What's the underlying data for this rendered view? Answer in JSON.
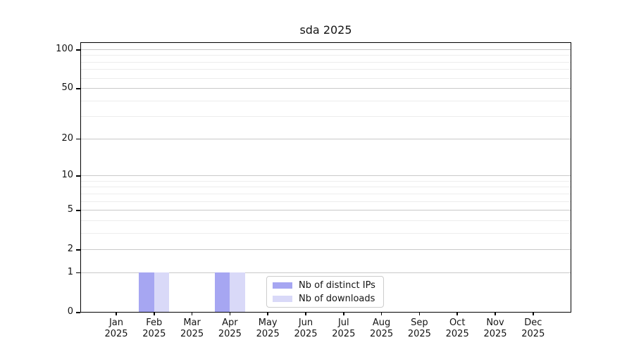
{
  "chart_data": {
    "type": "bar",
    "title": "sda 2025",
    "categories": [
      "Jan",
      "Feb",
      "Mar",
      "Apr",
      "May",
      "Jun",
      "Jul",
      "Aug",
      "Sep",
      "Oct",
      "Nov",
      "Dec"
    ],
    "category_year": "2025",
    "series": [
      {
        "name": "Nb of distinct IPs",
        "color": "#a6a6f2",
        "values": [
          0,
          1,
          0,
          1,
          0,
          0,
          0,
          0,
          0,
          0,
          0,
          0
        ]
      },
      {
        "name": "Nb of downloads",
        "color": "#d9d9f8",
        "values": [
          0,
          1,
          0,
          1,
          0,
          0,
          0,
          0,
          0,
          0,
          0,
          0
        ]
      }
    ],
    "y_axis": {
      "scale": "log1p",
      "tick_values": [
        0,
        1,
        2,
        5,
        10,
        20,
        50,
        100
      ],
      "tick_labels": [
        "0",
        "1",
        "2",
        "5",
        "10",
        "20",
        "50",
        "100"
      ],
      "minor_gridline_values": [
        3,
        4,
        6,
        7,
        8,
        9,
        30,
        40,
        60,
        70,
        80,
        90
      ],
      "ylim": [
        0,
        100
      ]
    },
    "legend": {
      "position": "lower-center"
    },
    "grid": true
  },
  "colors": {
    "background": "#ffffff",
    "spine": "#000000",
    "major_grid": "#c9c9c9",
    "minor_grid": "#ededed",
    "text": "#141414",
    "legend_border": "#cccccc",
    "legend_bg": "#ffffff"
  }
}
